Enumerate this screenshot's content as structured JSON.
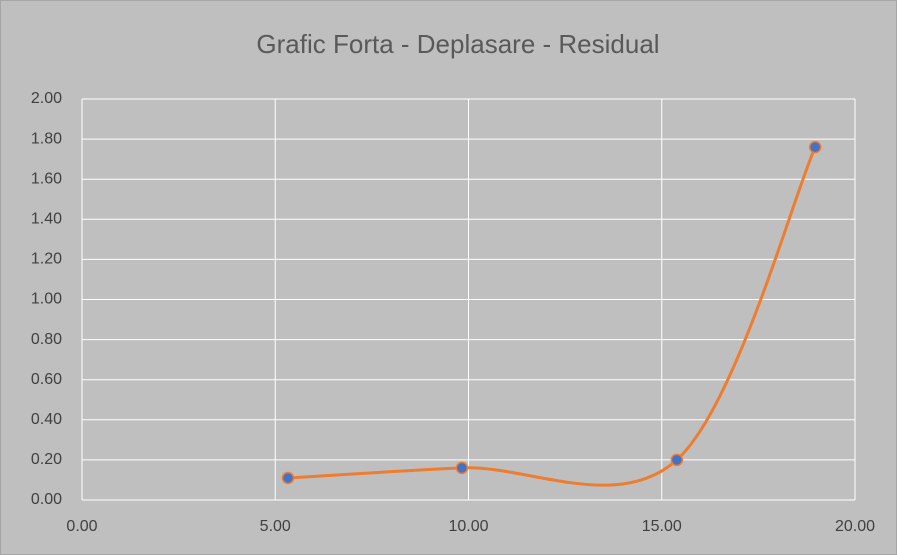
{
  "chart_data": {
    "type": "scatter",
    "title": "Grafic Forta - Deplasare - Residual",
    "series": [
      {
        "name": "Residual",
        "color": "#ed7d31",
        "marker_color": "#4472c4",
        "x": [
          5.33,
          9.83,
          15.39,
          18.97
        ],
        "values": [
          0.11,
          0.16,
          0.2,
          1.76
        ]
      }
    ],
    "xlim": [
      0,
      20
    ],
    "xticks": [
      {
        "value": 0,
        "label": "0.00"
      },
      {
        "value": 5,
        "label": "5.00"
      },
      {
        "value": 10,
        "label": "10.00"
      },
      {
        "value": 15,
        "label": "15.00"
      },
      {
        "value": 20,
        "label": "20.00"
      }
    ],
    "ylim": [
      0,
      2
    ],
    "yticks": [
      {
        "value": 0,
        "label": "0.00"
      },
      {
        "value": 0.2,
        "label": "0.20"
      },
      {
        "value": 0.4,
        "label": "0.40"
      },
      {
        "value": 0.6,
        "label": "0.60"
      },
      {
        "value": 0.8,
        "label": "0.80"
      },
      {
        "value": 1,
        "label": "1.00"
      },
      {
        "value": 1.2,
        "label": "1.20"
      },
      {
        "value": 1.4,
        "label": "1.40"
      },
      {
        "value": 1.6,
        "label": "1.60"
      },
      {
        "value": 1.8,
        "label": "1.80"
      },
      {
        "value": 2,
        "label": "2.00"
      }
    ],
    "grid": true,
    "smooth": true
  }
}
